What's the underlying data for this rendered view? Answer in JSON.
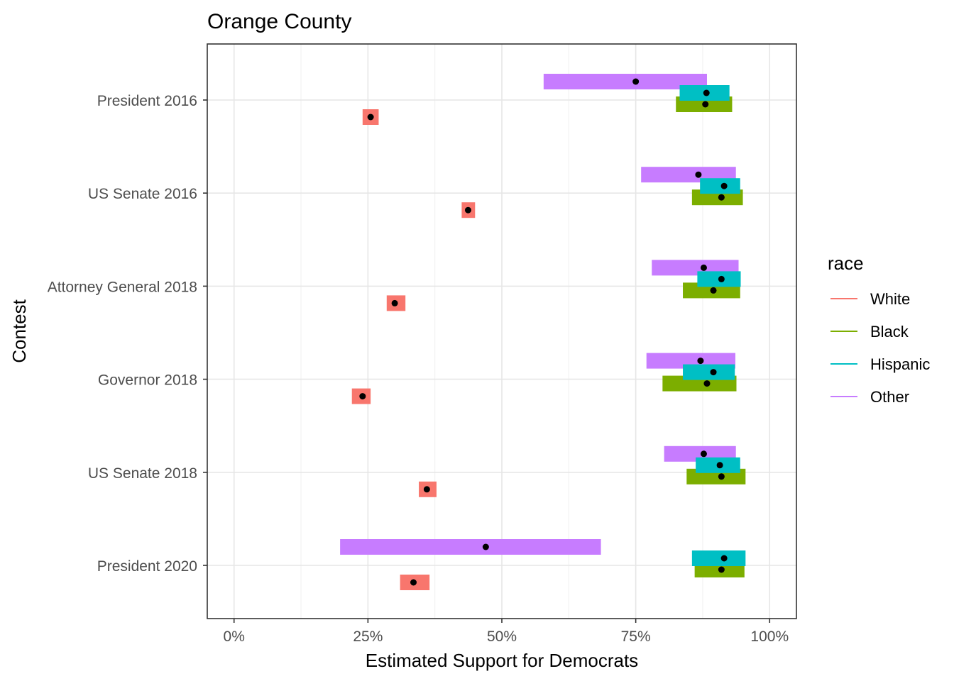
{
  "chart_data": {
    "type": "range-dot",
    "title": "Orange County",
    "xlabel": "Estimated Support for Democrats",
    "ylabel": "Contest",
    "xlim": [
      -0.05,
      1.05
    ],
    "x_ticks": [
      0,
      0.25,
      0.5,
      0.75,
      1.0
    ],
    "x_tick_labels": [
      "0%",
      "25%",
      "50%",
      "75%",
      "100%"
    ],
    "grid": true,
    "legend_position": "right",
    "legend_title": "race",
    "categories": [
      "President 2016",
      "US Senate 2016",
      "Attorney General 2018",
      "Governor 2018",
      "US Senate 2018",
      "President 2020"
    ],
    "series": [
      {
        "name": "White",
        "color": "#F8766D",
        "points": [
          {
            "contest": "President 2016",
            "estimate": 0.255,
            "low": 0.24,
            "high": 0.27
          },
          {
            "contest": "US Senate 2016",
            "estimate": 0.437,
            "low": 0.425,
            "high": 0.45
          },
          {
            "contest": "Attorney General 2018",
            "estimate": 0.3,
            "low": 0.285,
            "high": 0.32
          },
          {
            "contest": "Governor 2018",
            "estimate": 0.24,
            "low": 0.22,
            "high": 0.255
          },
          {
            "contest": "US Senate 2018",
            "estimate": 0.36,
            "low": 0.345,
            "high": 0.378
          },
          {
            "contest": "President 2020",
            "estimate": 0.335,
            "low": 0.31,
            "high": 0.365
          }
        ]
      },
      {
        "name": "Black",
        "color": "#7CAE00",
        "points": [
          {
            "contest": "President 2016",
            "estimate": 0.88,
            "low": 0.825,
            "high": 0.93
          },
          {
            "contest": "US Senate 2016",
            "estimate": 0.91,
            "low": 0.855,
            "high": 0.95
          },
          {
            "contest": "Attorney General 2018",
            "estimate": 0.895,
            "low": 0.838,
            "high": 0.945
          },
          {
            "contest": "Governor 2018",
            "estimate": 0.883,
            "low": 0.8,
            "high": 0.938
          },
          {
            "contest": "US Senate 2018",
            "estimate": 0.91,
            "low": 0.845,
            "high": 0.955
          },
          {
            "contest": "President 2020",
            "estimate": 0.91,
            "low": 0.86,
            "high": 0.953
          }
        ]
      },
      {
        "name": "Hispanic",
        "color": "#00BFC4",
        "points": [
          {
            "contest": "President 2016",
            "estimate": 0.882,
            "low": 0.832,
            "high": 0.925
          },
          {
            "contest": "US Senate 2016",
            "estimate": 0.915,
            "low": 0.87,
            "high": 0.945
          },
          {
            "contest": "Attorney General 2018",
            "estimate": 0.91,
            "low": 0.865,
            "high": 0.946
          },
          {
            "contest": "Governor 2018",
            "estimate": 0.895,
            "low": 0.838,
            "high": 0.935
          },
          {
            "contest": "US Senate 2018",
            "estimate": 0.907,
            "low": 0.862,
            "high": 0.945
          },
          {
            "contest": "President 2020",
            "estimate": 0.915,
            "low": 0.855,
            "high": 0.955
          }
        ]
      },
      {
        "name": "Other",
        "color": "#C77CFF",
        "points": [
          {
            "contest": "President 2016",
            "estimate": 0.75,
            "low": 0.578,
            "high": 0.883
          },
          {
            "contest": "US Senate 2016",
            "estimate": 0.867,
            "low": 0.76,
            "high": 0.937
          },
          {
            "contest": "Attorney General 2018",
            "estimate": 0.877,
            "low": 0.78,
            "high": 0.942
          },
          {
            "contest": "Governor 2018",
            "estimate": 0.871,
            "low": 0.77,
            "high": 0.936
          },
          {
            "contest": "US Senate 2018",
            "estimate": 0.877,
            "low": 0.803,
            "high": 0.937
          },
          {
            "contest": "President 2020",
            "estimate": 0.47,
            "low": 0.198,
            "high": 0.685
          }
        ]
      }
    ]
  }
}
